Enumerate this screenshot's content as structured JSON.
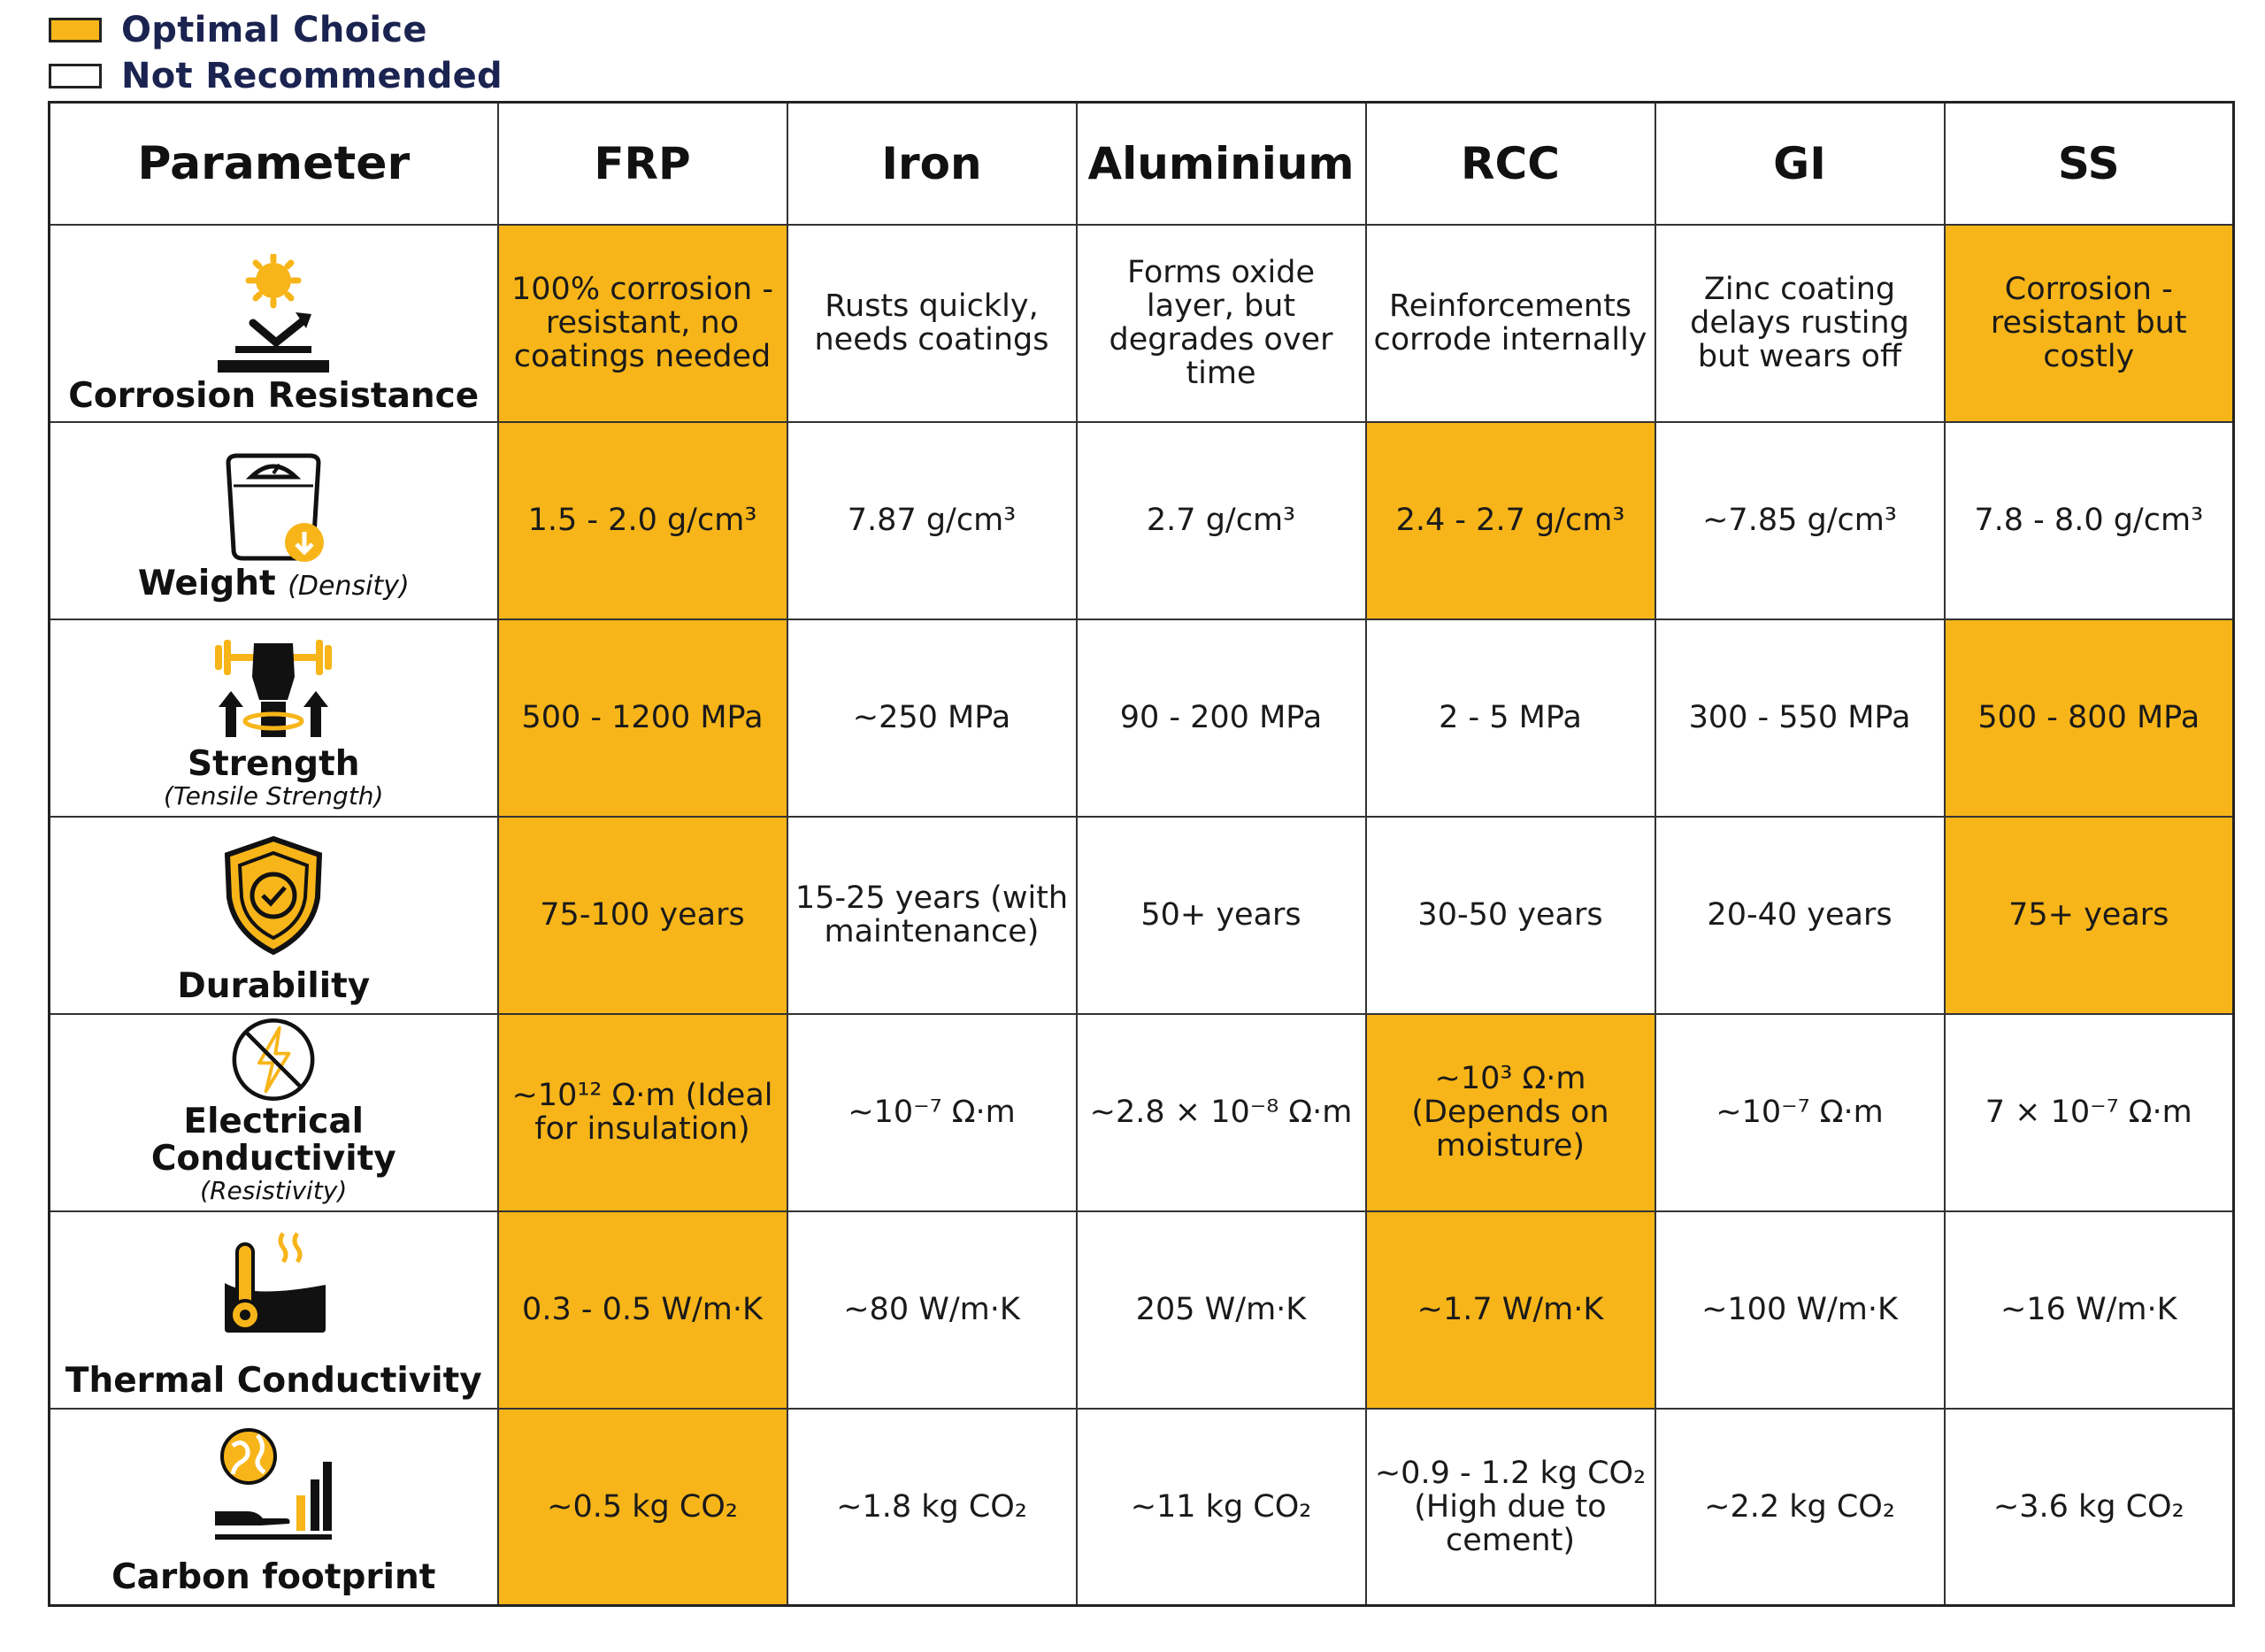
{
  "legend": [
    {
      "label": "Optimal Choice",
      "color": "#f7b519"
    },
    {
      "label": "Not Recommended",
      "color": "#ffffff"
    }
  ],
  "columns": [
    "Parameter",
    "FRP",
    "Iron",
    "Aluminium",
    "RCC",
    "GI",
    "SS"
  ],
  "rows": [
    {
      "name": "Corrosion Resistance",
      "sub": "",
      "icon": "corrosion-icon",
      "cells": [
        {
          "text": "100% corrosion -resistant, no coatings needed",
          "optimal": true
        },
        {
          "text": "Rusts quickly, needs coatings",
          "optimal": false
        },
        {
          "text": "Forms oxide layer, but degrades over time",
          "optimal": false
        },
        {
          "text": "Reinforcements corrode internally",
          "optimal": false
        },
        {
          "text": "Zinc coating delays rusting but wears off",
          "optimal": false
        },
        {
          "text": "Corrosion -resistant but costly",
          "optimal": true
        }
      ]
    },
    {
      "name": "Weight",
      "sub": "(Density)",
      "icon": "weighing-scale-icon",
      "cells": [
        {
          "text": "1.5 - 2.0 g/cm³",
          "optimal": true
        },
        {
          "text": "7.87 g/cm³",
          "optimal": false
        },
        {
          "text": "2.7 g/cm³",
          "optimal": false
        },
        {
          "text": "2.4 - 2.7 g/cm³",
          "optimal": true
        },
        {
          "text": "~7.85 g/cm³",
          "optimal": false
        },
        {
          "text": "7.8 - 8.0 g/cm³",
          "optimal": false
        }
      ]
    },
    {
      "name": "Strength",
      "sub": "(Tensile Strength)",
      "icon": "strength-icon",
      "cells": [
        {
          "text": "500 - 1200 MPa",
          "optimal": true
        },
        {
          "text": "~250 MPa",
          "optimal": false
        },
        {
          "text": "90 - 200 MPa",
          "optimal": false
        },
        {
          "text": "2 - 5 MPa",
          "optimal": false
        },
        {
          "text": "300 - 550 MPa",
          "optimal": false
        },
        {
          "text": "500 - 800 MPa",
          "optimal": true
        }
      ]
    },
    {
      "name": "Durability",
      "sub": "",
      "icon": "shield-icon",
      "cells": [
        {
          "text": "75-100 years",
          "optimal": true
        },
        {
          "text": "15-25 years (with maintenance)",
          "optimal": false
        },
        {
          "text": "50+ years",
          "optimal": false
        },
        {
          "text": "30-50 years",
          "optimal": false
        },
        {
          "text": "20-40 years",
          "optimal": false
        },
        {
          "text": "75+ years",
          "optimal": true
        }
      ]
    },
    {
      "name": "Electrical Conductivity",
      "sub": "(Resistivity)",
      "icon": "no-electricity-icon",
      "cells": [
        {
          "text": "~10¹² Ω·m (Ideal for insulation)",
          "optimal": true
        },
        {
          "text": "~10⁻⁷ Ω·m",
          "optimal": false
        },
        {
          "text": "~2.8 × 10⁻⁸ Ω·m",
          "optimal": false
        },
        {
          "text": "~10³ Ω·m (Depends on moisture)",
          "optimal": true
        },
        {
          "text": "~10⁻⁷ Ω·m",
          "optimal": false
        },
        {
          "text": "7 × 10⁻⁷ Ω·m",
          "optimal": false
        }
      ]
    },
    {
      "name": "Thermal Conductivity",
      "sub": "",
      "icon": "thermometer-icon",
      "cells": [
        {
          "text": "0.3 - 0.5 W/m·K",
          "optimal": true
        },
        {
          "text": "~80 W/m·K",
          "optimal": false
        },
        {
          "text": "205 W/m·K",
          "optimal": false
        },
        {
          "text": "~1.7 W/m·K",
          "optimal": true
        },
        {
          "text": "~100 W/m·K",
          "optimal": false
        },
        {
          "text": "~16 W/m·K",
          "optimal": false
        }
      ]
    },
    {
      "name": "Carbon footprint",
      "sub": "",
      "icon": "carbon-footprint-icon",
      "cells": [
        {
          "text": "~0.5 kg CO₂",
          "optimal": true
        },
        {
          "text": "~1.8 kg CO₂",
          "optimal": false
        },
        {
          "text": "~11 kg CO₂",
          "optimal": false
        },
        {
          "text": "~0.9 - 1.2 kg CO₂ (High due to cement)",
          "optimal": false
        },
        {
          "text": "~2.2 kg CO₂",
          "optimal": false
        },
        {
          "text": "~3.6 kg CO₂",
          "optimal": false
        }
      ]
    }
  ]
}
